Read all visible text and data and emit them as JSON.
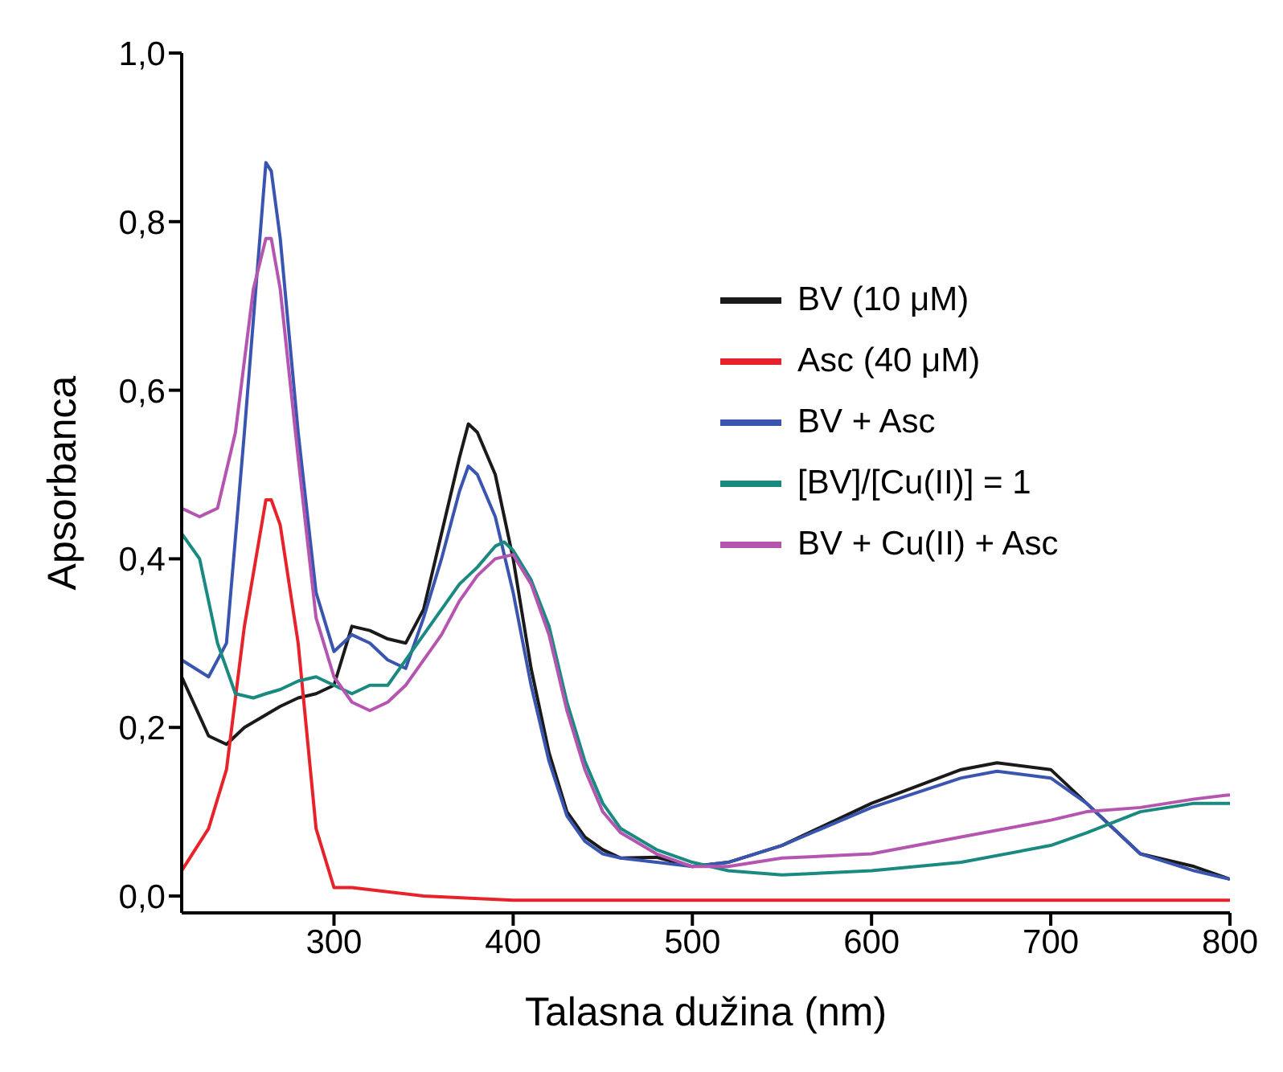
{
  "chart_data": {
    "type": "line",
    "xlabel": "Talasna dužina (nm)",
    "ylabel": "Apsorbanca",
    "xlim": [
      215,
      800
    ],
    "xticks": [
      300,
      400,
      500,
      600,
      700,
      800
    ],
    "ylim": [
      -0.02,
      1.0
    ],
    "yticks": [
      {
        "value": 0,
        "label": "0,0"
      },
      {
        "value": 0.2,
        "label": "0,2"
      },
      {
        "value": 0.4,
        "label": "0,4"
      },
      {
        "value": 0.6,
        "label": "0,6"
      },
      {
        "value": 0.8,
        "label": "0,8"
      },
      {
        "value": 1.0,
        "label": "1,0"
      }
    ],
    "legend": "top right",
    "grid": false,
    "marker": "none",
    "line_style": "solid",
    "series": [
      {
        "name": "BV (10 μM)",
        "color": "#1a1a1a",
        "x": [
          215,
          230,
          240,
          250,
          262,
          270,
          280,
          290,
          300,
          310,
          320,
          330,
          340,
          350,
          360,
          370,
          375,
          380,
          390,
          400,
          410,
          420,
          430,
          440,
          450,
          460,
          480,
          500,
          520,
          550,
          600,
          650,
          670,
          700,
          720,
          750,
          780,
          800
        ],
        "values": [
          0.26,
          0.19,
          0.18,
          0.2,
          0.215,
          0.225,
          0.235,
          0.24,
          0.25,
          0.32,
          0.315,
          0.305,
          0.3,
          0.34,
          0.43,
          0.52,
          0.56,
          0.55,
          0.5,
          0.4,
          0.27,
          0.17,
          0.1,
          0.07,
          0.055,
          0.045,
          0.046,
          0.035,
          0.04,
          0.06,
          0.11,
          0.15,
          0.158,
          0.15,
          0.11,
          0.05,
          0.035,
          0.02
        ]
      },
      {
        "name": "Asc (40 μM)",
        "color": "#e8222a",
        "x": [
          215,
          230,
          240,
          250,
          262,
          265,
          270,
          280,
          290,
          300,
          310,
          350,
          400,
          500,
          600,
          700,
          800
        ],
        "values": [
          0.03,
          0.08,
          0.15,
          0.32,
          0.47,
          0.47,
          0.44,
          0.3,
          0.08,
          0.01,
          0.01,
          0.0,
          -0.005,
          -0.005,
          -0.005,
          -0.005,
          -0.005
        ]
      },
      {
        "name": "BV + Asc",
        "color": "#3a55b0",
        "x": [
          215,
          230,
          240,
          250,
          262,
          265,
          270,
          280,
          290,
          300,
          310,
          320,
          330,
          340,
          350,
          360,
          370,
          375,
          380,
          390,
          400,
          410,
          420,
          430,
          440,
          450,
          460,
          480,
          500,
          520,
          550,
          600,
          650,
          670,
          700,
          720,
          750,
          780,
          800
        ],
        "values": [
          0.28,
          0.26,
          0.3,
          0.55,
          0.87,
          0.86,
          0.78,
          0.55,
          0.36,
          0.29,
          0.31,
          0.3,
          0.28,
          0.27,
          0.33,
          0.4,
          0.48,
          0.51,
          0.5,
          0.45,
          0.36,
          0.25,
          0.16,
          0.095,
          0.065,
          0.05,
          0.045,
          0.04,
          0.035,
          0.04,
          0.06,
          0.105,
          0.14,
          0.148,
          0.14,
          0.11,
          0.05,
          0.03,
          0.02
        ]
      },
      {
        "name": "[BV]/[Cu(II)] = 1",
        "color": "#1a8a80",
        "x": [
          215,
          225,
          235,
          245,
          255,
          262,
          270,
          280,
          290,
          300,
          310,
          320,
          330,
          340,
          350,
          360,
          370,
          380,
          390,
          395,
          400,
          410,
          420,
          430,
          440,
          450,
          460,
          480,
          500,
          520,
          550,
          600,
          650,
          700,
          720,
          750,
          780,
          800
        ],
        "values": [
          0.43,
          0.4,
          0.3,
          0.24,
          0.235,
          0.24,
          0.245,
          0.255,
          0.26,
          0.25,
          0.24,
          0.25,
          0.25,
          0.28,
          0.31,
          0.34,
          0.37,
          0.39,
          0.415,
          0.42,
          0.41,
          0.375,
          0.32,
          0.23,
          0.16,
          0.11,
          0.08,
          0.055,
          0.04,
          0.03,
          0.025,
          0.03,
          0.04,
          0.06,
          0.075,
          0.1,
          0.11,
          0.11
        ]
      },
      {
        "name": "BV + Cu(II) + Asc",
        "color": "#b456b0",
        "x": [
          215,
          225,
          235,
          245,
          255,
          262,
          265,
          270,
          280,
          290,
          300,
          310,
          320,
          330,
          340,
          350,
          360,
          370,
          380,
          390,
          400,
          410,
          420,
          430,
          440,
          450,
          460,
          480,
          500,
          520,
          550,
          600,
          650,
          700,
          720,
          750,
          780,
          800
        ],
        "values": [
          0.46,
          0.45,
          0.46,
          0.55,
          0.72,
          0.78,
          0.78,
          0.72,
          0.52,
          0.33,
          0.26,
          0.23,
          0.22,
          0.23,
          0.25,
          0.28,
          0.31,
          0.35,
          0.38,
          0.4,
          0.405,
          0.37,
          0.31,
          0.22,
          0.15,
          0.1,
          0.075,
          0.05,
          0.035,
          0.035,
          0.045,
          0.05,
          0.07,
          0.09,
          0.1,
          0.105,
          0.115,
          0.12
        ]
      }
    ]
  }
}
